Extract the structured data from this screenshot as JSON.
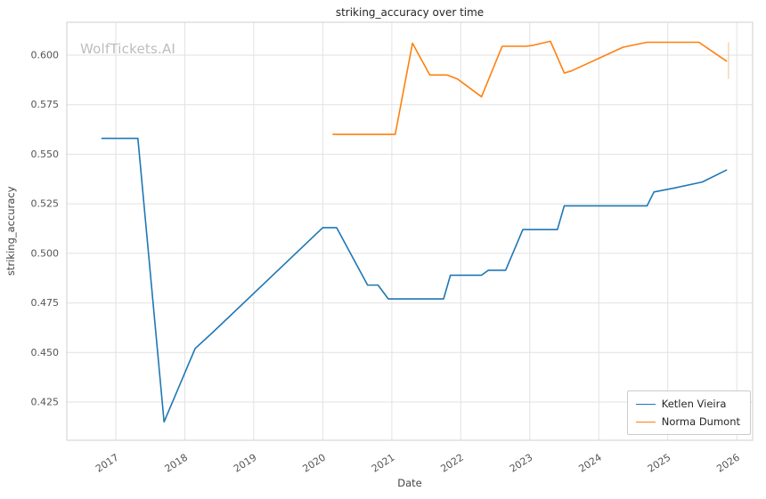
{
  "chart_data": {
    "type": "line",
    "title": "striking_accuracy over time",
    "xlabel": "Date",
    "ylabel": "striking_accuracy",
    "watermark": "WolfTickets.AI",
    "grid": true,
    "legend_position": "lower right",
    "xlim": [
      2016.29,
      2026.23
    ],
    "ylim": [
      0.4057,
      0.6166
    ],
    "xticks": [
      2017,
      2018,
      2019,
      2020,
      2021,
      2022,
      2023,
      2024,
      2025,
      2026
    ],
    "yticks": [
      0.425,
      0.45,
      0.475,
      0.5,
      0.525,
      0.55,
      0.575,
      0.6
    ],
    "grid_color": "#e2e2e2",
    "border_color": "#cfcfcf",
    "tick_color": "#555555",
    "series": [
      {
        "name": "Ketlen Vieira",
        "color": "#1f77b4",
        "x": [
          2016.8,
          2017.32,
          2017.7,
          2018.15,
          2018.4,
          2020.0,
          2020.2,
          2020.65,
          2020.8,
          2020.95,
          2021.75,
          2021.85,
          2022.3,
          2022.4,
          2022.65,
          2022.9,
          2023.4,
          2023.5,
          2024.7,
          2024.8,
          2025.1,
          2025.5,
          2025.85
        ],
        "y": [
          0.558,
          0.558,
          0.415,
          0.452,
          0.46,
          0.513,
          0.513,
          0.484,
          0.484,
          0.477,
          0.477,
          0.489,
          0.489,
          0.4915,
          0.4915,
          0.512,
          0.512,
          0.524,
          0.524,
          0.531,
          0.533,
          0.536,
          0.542
        ]
      },
      {
        "name": "Norma Dumont",
        "color": "#ff7f0e",
        "x": [
          2020.15,
          2021.05,
          2021.3,
          2021.55,
          2021.8,
          2021.95,
          2022.3,
          2022.6,
          2022.95,
          2023.05,
          2023.3,
          2023.5,
          2023.6,
          2024.35,
          2024.7,
          2025.45,
          2025.85
        ],
        "y": [
          0.56,
          0.56,
          0.606,
          0.59,
          0.59,
          0.588,
          0.579,
          0.6045,
          0.6045,
          0.605,
          0.607,
          0.591,
          0.592,
          0.604,
          0.6065,
          0.6065,
          0.597
        ]
      }
    ],
    "error_bar": {
      "x": 2025.88,
      "y_low": 0.588,
      "y_high": 0.6065,
      "color": "#e8b890"
    }
  }
}
